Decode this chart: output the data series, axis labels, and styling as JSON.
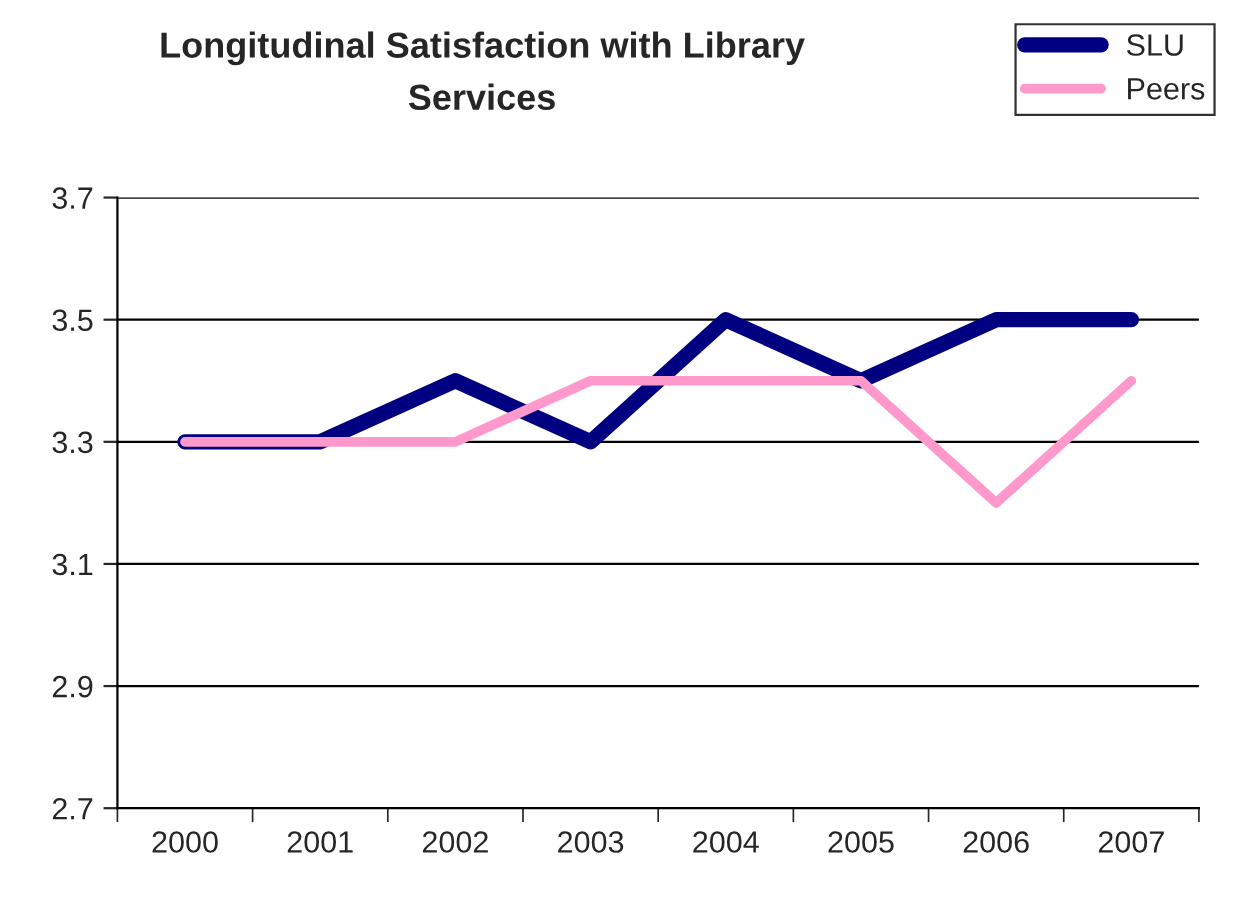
{
  "chart_data": {
    "type": "line",
    "title": "Longitudinal Satisfaction with Library\nServices",
    "categories": [
      "2000",
      "2001",
      "2002",
      "2003",
      "2004",
      "2005",
      "2006",
      "2007"
    ],
    "series": [
      {
        "name": "SLU",
        "color": "#000080",
        "values": [
          3.3,
          3.3,
          3.4,
          3.3,
          3.5,
          3.4,
          3.5,
          3.5
        ]
      },
      {
        "name": "Peers",
        "color": "#ff99cc",
        "values": [
          3.3,
          3.3,
          3.3,
          3.4,
          3.4,
          3.4,
          3.2,
          3.4
        ]
      }
    ],
    "ylim": [
      2.7,
      3.7
    ],
    "yticks": [
      2.7,
      2.9,
      3.1,
      3.3,
      3.5,
      3.7
    ],
    "grid": "y",
    "legend": "top right",
    "marker": "none",
    "line_style": "solid"
  }
}
